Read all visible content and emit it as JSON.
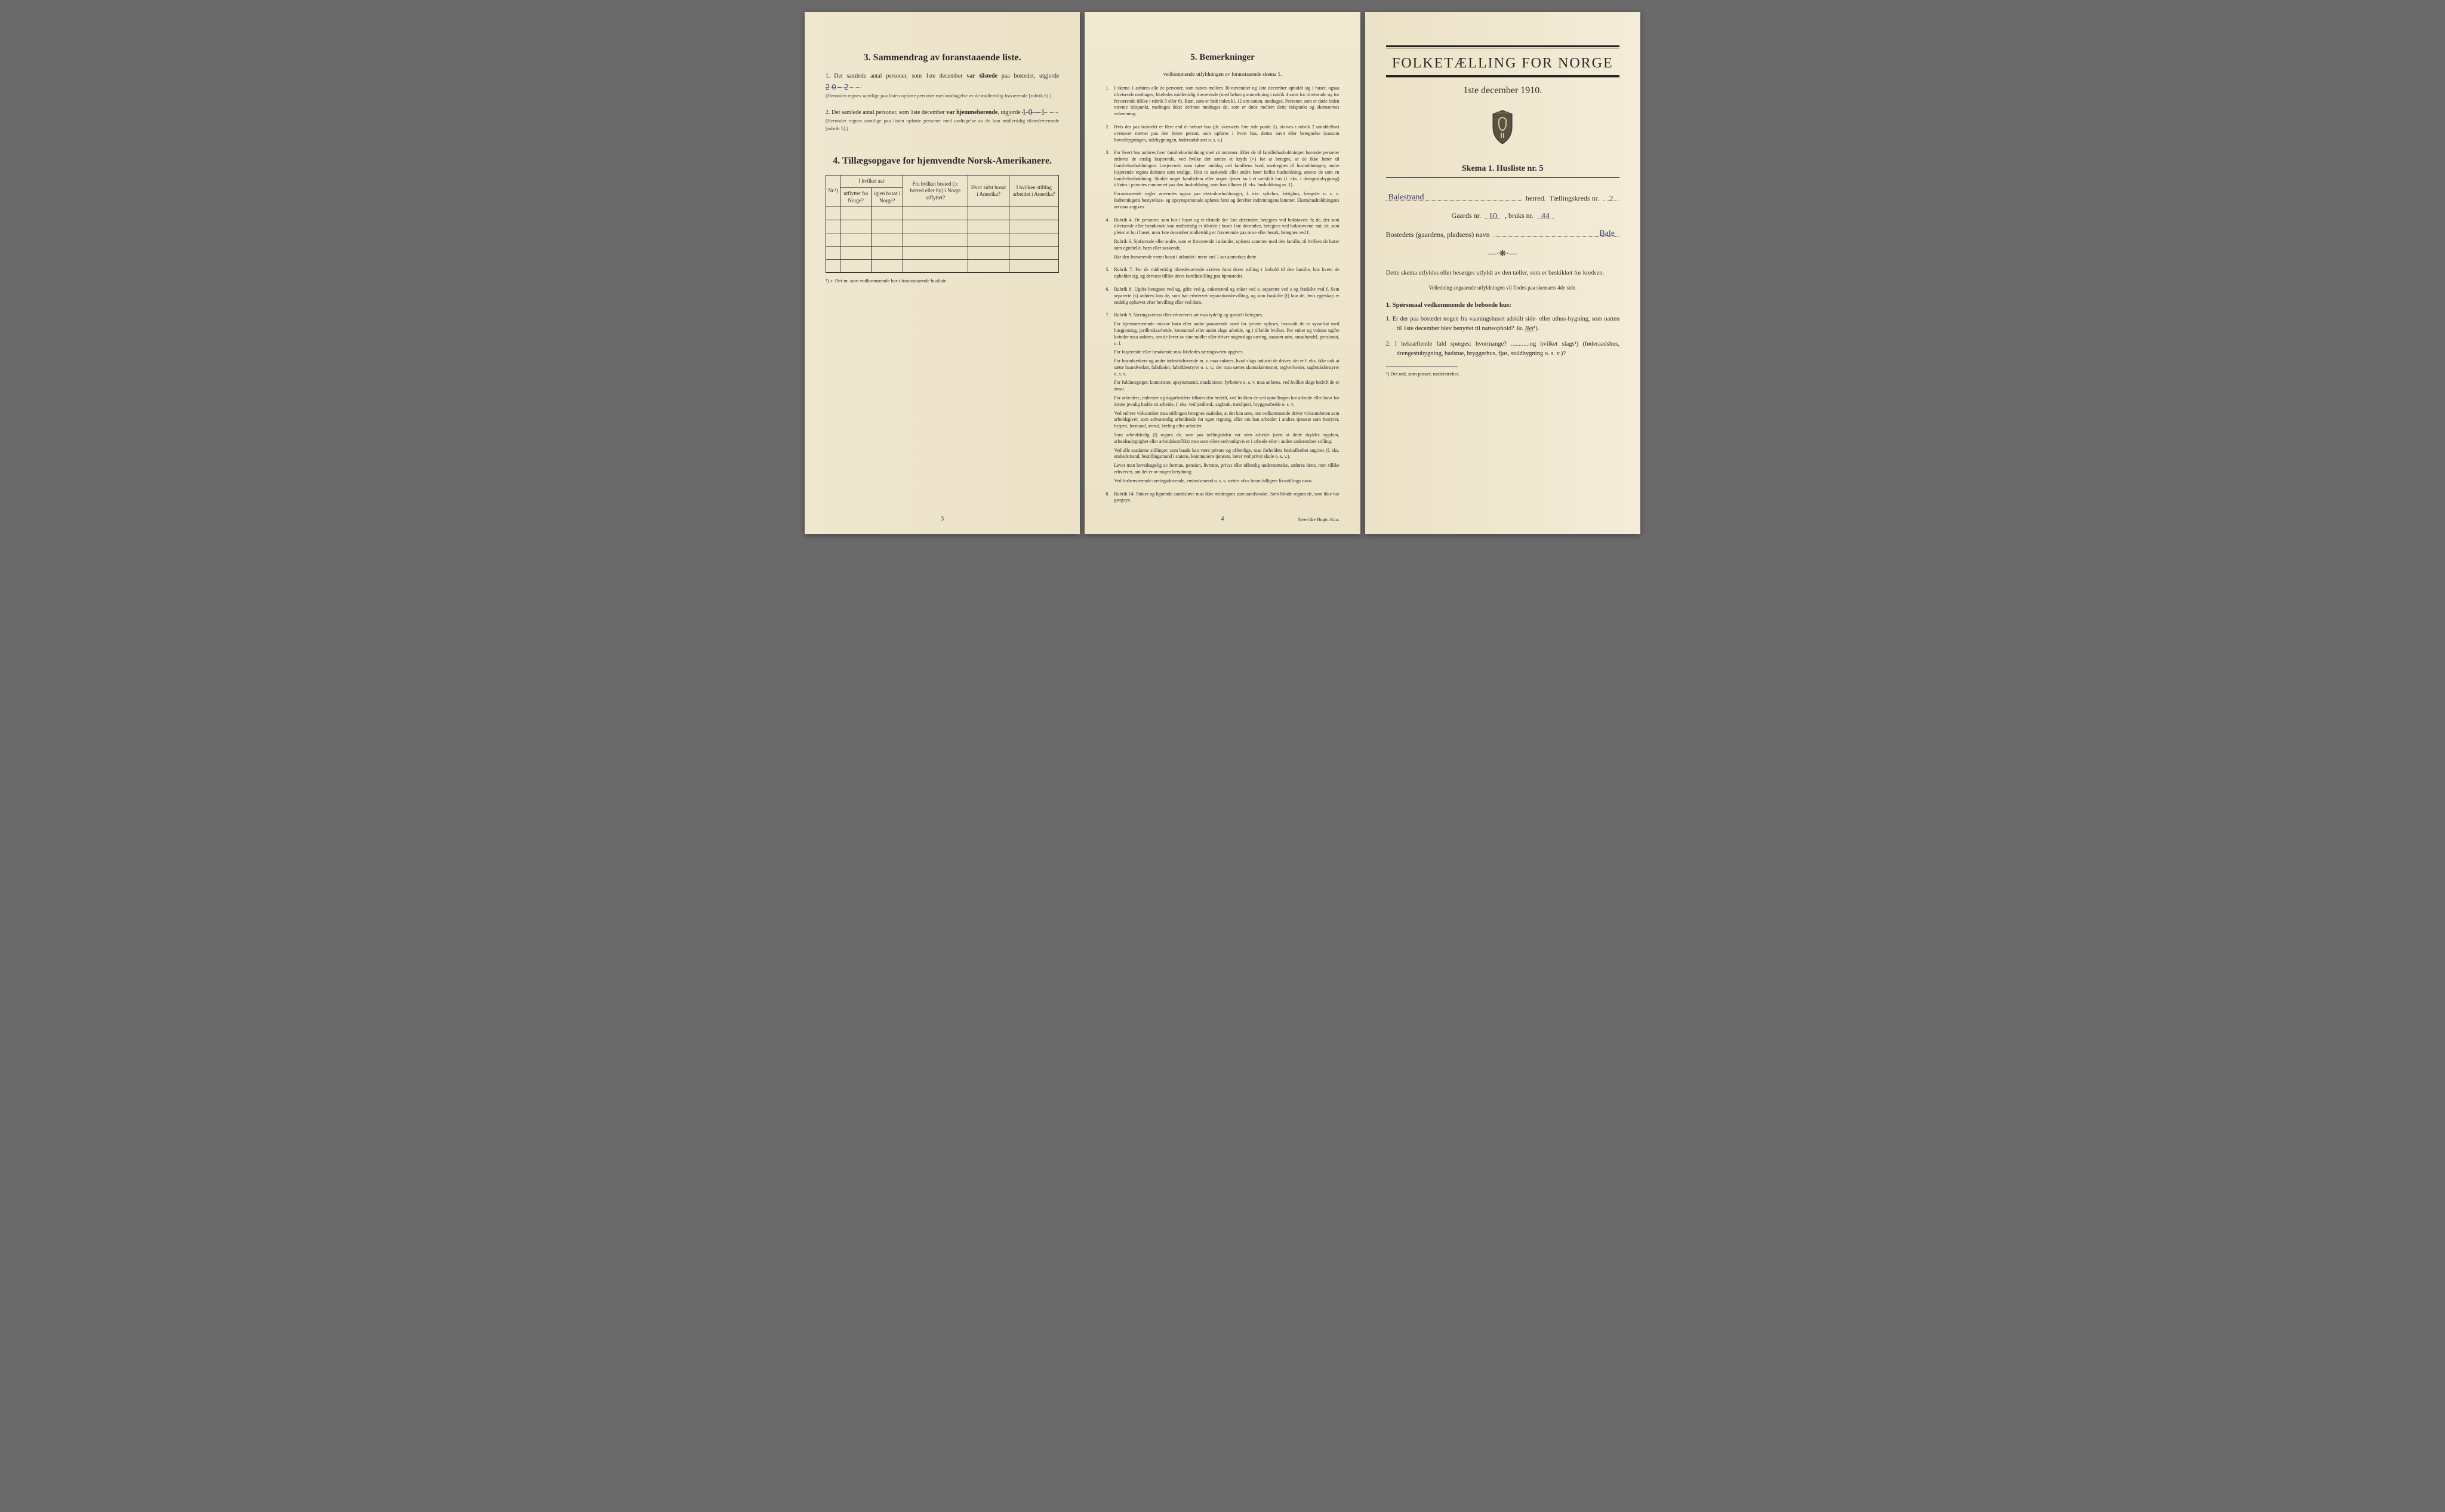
{
  "colors": {
    "paper": "#f2e9d2",
    "paper_shadow": "#ebe1c6",
    "ink": "#2a2a2a",
    "handwriting": "#2a3a6a",
    "background": "#6a6a6a"
  },
  "left": {
    "section3": {
      "title": "3.   Sammendrag av foranstaaende liste.",
      "item1_pre": "1.  Det samlede antal personer, som 1ste december",
      "item1_bold": "var tilstede",
      "item1_post": "paa bostedet, utgjorde",
      "item1_value": "2  0 – 2",
      "item1_note": "(Herunder regnes samtlige paa listen opførte personer med undtagelse av de midlertidig fraværende [rubrik 6].)",
      "item2_pre": "2.  Det samlede antal personer, som 1ste december",
      "item2_bold": "var hjemmehørende",
      "item2_post": ", utgjorde",
      "item2_value": "1  0 – 1",
      "item2_note": "(Herunder regnes samtlige paa listen opførte personer med undtagelse av de kun midlertidig tilstedeværende [rubrik 5].)"
    },
    "section4": {
      "title": "4.   Tillægsopgave for hjemvendte Norsk-Amerikanere.",
      "headers": {
        "nr": "Nr.¹)",
        "aar_group": "I hvilket aar",
        "utflyttet": "utflyttet fra Norge?",
        "igjen": "igjen bosat i Norge?",
        "fra_bosted": "Fra hvilket bosted (ɔ: herred eller by) i Norge utflyttet?",
        "hvor_sidst": "Hvor sidst bosat i Amerika?",
        "stilling": "I hvilken stilling arbeidet i Amerika?"
      },
      "blank_rows": 5,
      "note": "¹) ɔ: Det nr. som vedkommende har i foranstaaende husliste."
    },
    "page_num": "3"
  },
  "middle": {
    "title": "5.   Bemerkninger",
    "subtitle": "vedkommende utfyldningen av foranstaaende skema 1.",
    "items": [
      {
        "n": "1.",
        "body": [
          "I skema 1 anføres alle de personer, som natten mellem 30 november og 1ste december opholdt sig i huset; ogsaa tilreisende medtages; likeledes midlertidig fraværende (med behørig anmerkning i rubrik 4 samt for tilreisende og for fraværende tillike i rubrik 5 eller 6). Barn, som er født inden kl. 12 om natten, medtages. Personer, som er døde inden nævnte tidspunkt, medtages ikke; derimot medtages de, som er døde mellem dette tidspunkt og skemaernes avhentning."
        ]
      },
      {
        "n": "2.",
        "body": [
          "Hvis der paa bostedet er flere end ét beboet hus (jfr. skemaets 1ste side punkt 2), skrives i rubrik 2 umiddelbart ovenover navnet paa den første person, som opføres i hvert hus, dettes navn eller betegnelse (saasom hovedbygningen, sidebygningen, føderaadshuset o. s. v.)."
        ]
      },
      {
        "n": "3.",
        "body": [
          "For hvert hus anføres hver familiehusholdning med sit nummer. Efter de til familiehusholdningen hørende personer anføres de enslig losjerende, ved hvilke der sættes et kryds (×) for at betegne, at de ikke hører til familiehusholdningen. Losjerende, som spiser middag ved familiens bord, medregnes til husholdningen; andre losjerende regnes derimot som enslige. Hvis to søskende eller andre fører fælles husholdning, ansees de som en familiehusholdning. Skulde noget familielem eller nogen tjener bo i et særskilt hus (f. eks. i drengestubygning) tilføies i parentes nummeret paa den husholdning, som han tilhører (f. eks. husholdning nr. 1).",
          "Foranstaaende regler anvendes ogsaa paa ekstrahusholdninger, f. eks. sykehus, fattighus, fængsler o. s. v. Indretningens bestyrelses- og opsynspersonale opføres først og derefter indretningens lemmer. Ekstrahusholdningens art maa angives."
        ]
      },
      {
        "n": "4.",
        "body": [
          "Rubrik 4. De personer, som bor i huset og er tilstede der 1ste december, betegnes ved bokstaven: b; de, der som tilreisende eller besøkende kun midlertidig er tilstede i huset 1ste december, betegnes ved bokstaverne: mt; de, som pleier at bo i huset, men 1ste december midlertidig er fraværende paa reise eller besøk, betegnes ved f.",
          "Rubrik 6. Sjøfarende eller andre, som er fraværende i utlandet, opføres sammen med den familie, til hvilken de hører som egtefælle, barn eller søskende.",
          "Har den fraværende været bosat i utlandet i mere end 1 aar anmerkes dette."
        ]
      },
      {
        "n": "5.",
        "body": [
          "Rubrik 7. For de midlertidig tilstedeværende skrives først deres stilling i forhold til den familie, hos hvem de opholder sig, og dernæst tillike deres familiestilling paa hjemstedet."
        ]
      },
      {
        "n": "6.",
        "body": [
          "Rubrik 8. Ugifte betegnes ved ug, gifte ved g, enkemænd og enker ved e, separerte ved s og fraskilte ved f. Som separerte (s) anføres kun de, som har erhvervet separationsbevilling, og som fraskilte (f) kun de, hvis egteskap er endelig ophævet efter bevilling eller ved dom."
        ]
      },
      {
        "n": "7.",
        "body": [
          "Rubrik 9. Næringsveiens eller erhvervets art maa tydelig og specielt betegnes.",
          "For hjemmeværende voksne børn eller andre paarørende samt for tjenere oplyses, hvorvidt de er sysselsat med husgjerning, jordbruksarbeide, kreaturstel eller andet slags arbeide, og i tilfælde hvilket. For enker og voksne ugifte kvinder maa anføres, om de lever av sine midler eller driver nogenslags næring, saasom søm, smaahandel, pensionat, o. l.",
          "For losjerende eller besøkende maa likeledes næringsveien opgives.",
          "For haandverkere og andre industridrivende m. v. maa anføres, hvad slags industri de driver; det er f. eks. ikke nok at sætte haandverker, fabrikeier, fabrikbestyrer o. s. v.; der maa sættes skomakermester, teglverkseier, sagbruksbestyrer o. s. v.",
          "For fuldmægtiger, kontorister, opsynsmænd, maskinister, fyrbøtere o. s. v. maa anføres, ved hvilket slags bedrift de er ansat.",
          "For arbeidere, inderster og dagarbeidere tilføies den bedrift, ved hvilken de ved optællingen har arbeide eller forut for denne jevnlig hadde sit arbeide, f. eks. ved jordbruk, sagbruk, træsliperi, bryggearbeide o. s. v.",
          "Ved enhver virksomhet maa stillingen betegnes saaledes, at det kan sees, om vedkommende driver virksomheten som arbeidsgiver, som selvstændig arbeidende for egen regning, eller om han arbeider i andres tjeneste som bestyrer, betjent, formand, svend, lærling eller arbeider.",
          "Som arbeidsledig (l) regnes de, som paa tællingstiden var uten arbeide (uten at dette skyldes sygdom, arbeidsudygtighet eller arbeidskonflikt) men som ellers sedvanligvis er i arbeide eller i anden underordnet stilling.",
          "Ved alle saadanne stillinger, som baade kan være private og offentlige, maa forholdets beskaffenhet angives (f. eks. embedsmand, bestillingsmand i statens, kommunens tjeneste, lærer ved privat skole o. s. v.).",
          "Lever man hovedsagelig av formue, pension, livrente, privat eller offentlig understøttelse, anføres dette, men tillike erhvervet, om det er av nogen betydning.",
          "Ved forhenværende næringsdrivende, embedsmænd o. s. v. sættes «fv» foran tidligere livsstillings navn."
        ]
      },
      {
        "n": "8.",
        "body": [
          "Rubrik 14. Sinker og lignende aandssløve maa ikke medregnes som aandssvake. Som blinde regnes de, som ikke har gangsyn."
        ]
      }
    ],
    "page_num": "4",
    "printer": "Steen'ske Bogtr.  Kr.a."
  },
  "right": {
    "main_title": "FOLKETÆLLING FOR NORGE",
    "date": "1ste december 1910.",
    "skema_label": "Skema 1.   Husliste nr.",
    "husliste_nr": "5",
    "herred_value": "Balestrand",
    "herred_label": "herred.",
    "kreds_label": "Tællingskreds nr.",
    "kreds_nr": "2",
    "gaards_label": "Gaards nr.",
    "gaards_nr": "10",
    "bruks_label": ", bruks nr.",
    "bruks_nr": "44",
    "bosted_label": "Bostedets (gaardens, pladsens) navn",
    "bosted_value": "Bale",
    "instruction1": "Dette skema utfyldes eller besørges utfyldt av den tæller, som er beskikket for kredsen.",
    "instruction2": "Veiledning angaaende utfyldningen vil findes paa skemaets 4de side.",
    "q_head": "1. Spørsmaal vedkommende de beboede hus:",
    "q1_pre": "1.  Er der paa bostedet nogen fra vaaningshuset adskilt side- eller uthus-bygning, som natten til 1ste december blev benyttet til natteophold?",
    "q1_ja": "Ja.",
    "q1_nei": "Nei",
    "q1_sup": "¹).",
    "q2": "2.  I bekræftende fald spørges: hvormange? ............og hvilket slags¹) (føderaadshus, drengestubygning, badstue, bryggerhus, fjøs, staldbygning o. s. v.)?",
    "footnote": "¹) Det ord, som passer, understrekes."
  }
}
